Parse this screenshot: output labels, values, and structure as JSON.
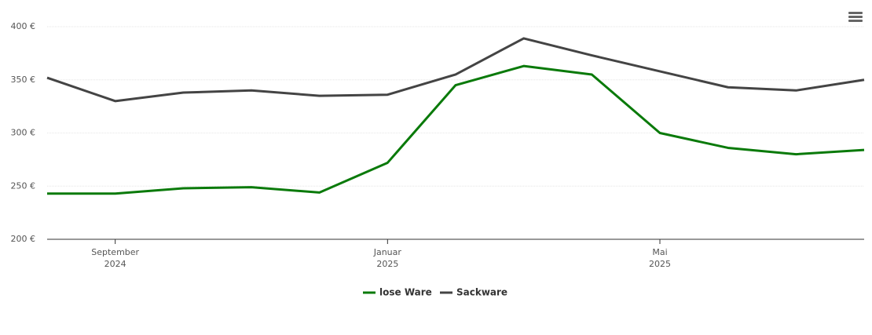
{
  "chart_data": {
    "type": "line",
    "x": [
      "2024-08",
      "2024-09",
      "2024-10",
      "2024-11",
      "2024-12",
      "2025-01",
      "2025-02",
      "2025-03",
      "2025-04",
      "2025-05",
      "2025-06",
      "2025-07",
      "2025-08"
    ],
    "series": [
      {
        "name": "lose Ware",
        "color": "#0a7a0a",
        "values": [
          243,
          243,
          248,
          249,
          244,
          272,
          345,
          363,
          355,
          300,
          286,
          280,
          284
        ]
      },
      {
        "name": "Sackware",
        "color": "#444444",
        "values": [
          352,
          330,
          338,
          340,
          335,
          336,
          355,
          389,
          373,
          358,
          343,
          340,
          350
        ]
      }
    ],
    "xlim": [
      "2024-08",
      "2025-08"
    ],
    "xticks": [
      {
        "value": "2024-09",
        "label": [
          "September",
          "2024"
        ]
      },
      {
        "value": "2025-01",
        "label": [
          "Januar",
          "2025"
        ]
      },
      {
        "value": "2025-05",
        "label": [
          "Mai",
          "2025"
        ]
      }
    ],
    "ylim": [
      200,
      400
    ],
    "yticks": [
      {
        "value": 200,
        "label": "200 €"
      },
      {
        "value": 250,
        "label": "250 €"
      },
      {
        "value": 300,
        "label": "300 €"
      },
      {
        "value": 350,
        "label": "350 €"
      },
      {
        "value": 400,
        "label": "400 €"
      }
    ],
    "grid": true
  }
}
